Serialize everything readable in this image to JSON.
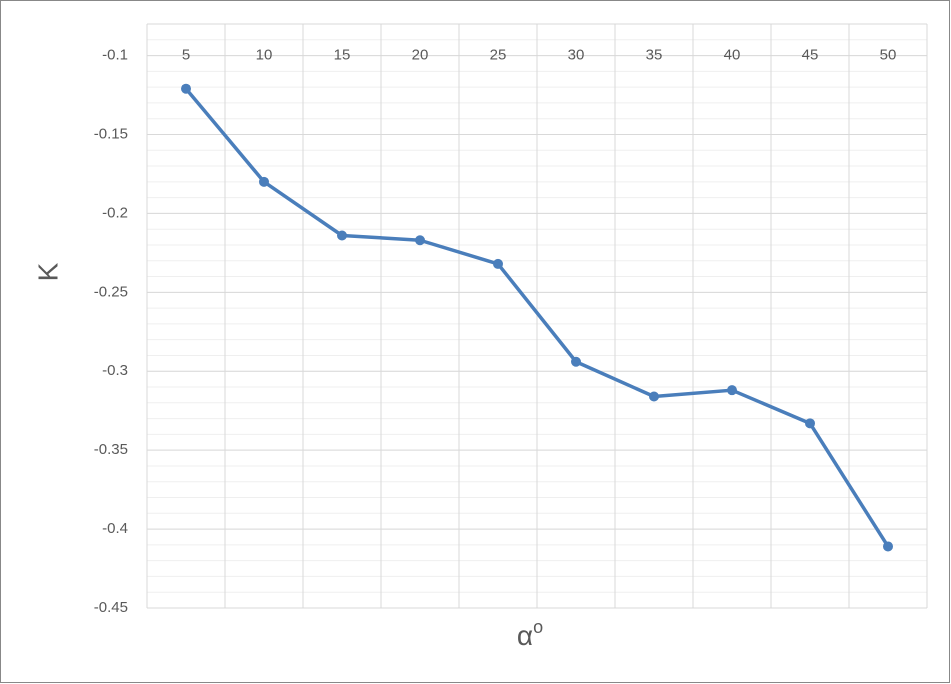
{
  "chart_data": {
    "type": "line",
    "categories": [
      5,
      10,
      15,
      20,
      25,
      30,
      35,
      40,
      45,
      50
    ],
    "series": [
      {
        "name": "K",
        "color": "#4a7ebb",
        "values": [
          -0.121,
          -0.18,
          -0.214,
          -0.217,
          -0.232,
          -0.294,
          -0.316,
          -0.312,
          -0.333,
          -0.411
        ]
      }
    ],
    "y_label": "K",
    "x_label": "α",
    "x_label_sup": "o",
    "ylim": [
      -0.45,
      -0.08
    ],
    "yticks": [
      -0.1,
      -0.15,
      -0.2,
      -0.25,
      -0.3,
      -0.35,
      -0.4,
      -0.45
    ],
    "grid": true,
    "minor_grid": true
  }
}
